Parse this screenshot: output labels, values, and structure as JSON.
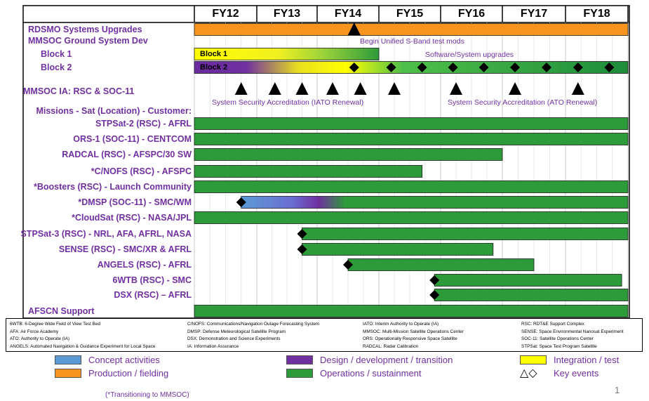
{
  "header": {
    "fiscal_years": [
      "FY12",
      "FY13",
      "FY14",
      "FY15",
      "FY16",
      "FY17",
      "FY18"
    ]
  },
  "rows": [
    {
      "label": "RDSMO Systems Upgrades"
    },
    {
      "label": "MMSOC Ground System Dev"
    },
    {
      "label": "Block 1"
    },
    {
      "label": "Block 2"
    },
    {
      "label": "MMSOC IA: RSC & SOC-11"
    },
    {
      "label": "Missions - Sat (Location) - Customer:"
    },
    {
      "label": "STPSat-2 (RSC) - AFRL"
    },
    {
      "label": "ORS-1 (SOC-11) - CENTCOM"
    },
    {
      "label": "RADCAL (RSC) - AFSPC/30 SW"
    },
    {
      "label": "*C/NOFS (RSC) - AFSPC"
    },
    {
      "label": "*Boosters (RSC) - Launch Community"
    },
    {
      "label": "*DMSP (SOC-11) - SMC/WM"
    },
    {
      "label": "*CloudSat (RSC) - NASA/JPL"
    },
    {
      "label": "STPSat-3 (RSC) - NRL, AFA, AFRL, NASA"
    },
    {
      "label": "SENSE (RSC) - SMC/XR & AFRL"
    },
    {
      "label": "ANGELS (RSC) - AFRL"
    },
    {
      "label": "6WTB (RSC) - SMC"
    },
    {
      "label": "DSX (RSC) – AFRL"
    },
    {
      "label": "AFSCN Support"
    }
  ],
  "bar_labels": {
    "block1": "Block 1",
    "block2": "Block 2"
  },
  "annotations": {
    "sband": "Begin Unified S-Band test mods",
    "software_upgrades": "Software/System upgrades",
    "iato_renewal": "System Security Accreditation (IATO Renewal)",
    "ato_renewal": "System Security Accreditation (ATO Renewal)"
  },
  "glossary": {
    "col1": [
      "6WTB: 6-Degree Wide Field of View Test Bed",
      "AFA: Air Force Academy",
      "ATO: Authority to Operate (IA)",
      "ANGELS: Automated Navigation & Guidance Experiment for Local Space"
    ],
    "col2": [
      "C/NOFS: Communications/Navigation Outage Forecasting System",
      "DMSP: Defense Meteorological Satellite Program",
      "DSX: Demonstration and Science Experiments",
      "IA: Information Assurance"
    ],
    "col3": [
      "IATO: Interim Authority to Operate (IA)",
      "MMSOC: Multi-Mission Satellite Operations Center",
      "ORS: Operationally Responsive Space Satellite",
      "RADCAL: Radar Calibration"
    ],
    "col4": [
      "RSC: RDT&E Support Complex",
      "SENSE: Space Environmental Nanosat Experiment",
      "SOC-11: Satellite Operations Center",
      "STPSat: Space Test Program Satellite"
    ]
  },
  "legend": {
    "concept": "Concept activities",
    "production": "Production / fielding",
    "design": "Design / development / transition",
    "operations": "Operations / sustainment",
    "integration": "Integration / test",
    "key_events_symbols": "△◇",
    "key_events": "Key events"
  },
  "footnote": "(*Transitioning to MMSOC)",
  "page_number": "1",
  "colors": {
    "concept": "#5b9bd5",
    "production": "#f7941d",
    "design": "#7030a0",
    "operations": "#2e9b3a",
    "integration": "#ffff00",
    "label": "#7030a0"
  },
  "chart_data": {
    "type": "gantt",
    "x_axis": {
      "unit": "fiscal year",
      "categories": [
        "FY12",
        "FY13",
        "FY14",
        "FY15",
        "FY16",
        "FY17",
        "FY18"
      ],
      "range": [
        2012.0,
        2019.0
      ]
    },
    "tasks": [
      {
        "row": "RDSMO Systems Upgrades",
        "phase": "production",
        "start": 2012.0,
        "end": 2019.0
      },
      {
        "row": "Block 1",
        "phase": "integration_to_operations",
        "start": 2012.0,
        "end": 2015.0
      },
      {
        "row": "Block 2",
        "phase": "design_integration_operations",
        "start": 2012.0,
        "end": 2019.0
      },
      {
        "row": "STPSat-2 (RSC) - AFRL",
        "phase": "operations",
        "start": 2012.0,
        "end": 2019.0
      },
      {
        "row": "ORS-1 (SOC-11) - CENTCOM",
        "phase": "operations",
        "start": 2012.0,
        "end": 2019.0
      },
      {
        "row": "RADCAL (RSC) - AFSPC/30 SW",
        "phase": "operations",
        "start": 2012.0,
        "end": 2017.0
      },
      {
        "row": "*C/NOFS (RSC) - AFSPC",
        "phase": "operations",
        "start": 2012.0,
        "end": 2015.7
      },
      {
        "row": "*Boosters (RSC) - Launch Community",
        "phase": "operations",
        "start": 2012.0,
        "end": 2019.0
      },
      {
        "row": "*DMSP (SOC-11) - SMC/WM",
        "phase": "concept_design_operations",
        "start": 2012.75,
        "end": 2019.0
      },
      {
        "row": "*CloudSat (RSC) - NASA/JPL",
        "phase": "operations",
        "start": 2012.0,
        "end": 2019.0
      },
      {
        "row": "STPSat-3 (RSC) - NRL, AFA, AFRL, NASA",
        "phase": "operations",
        "start": 2013.75,
        "end": 2019.0
      },
      {
        "row": "SENSE (RSC) - SMC/XR & AFRL",
        "phase": "operations",
        "start": 2013.75,
        "end": 2016.85
      },
      {
        "row": "ANGELS (RSC) - AFRL",
        "phase": "operations",
        "start": 2014.5,
        "end": 2017.5
      },
      {
        "row": "6WTB (RSC) - SMC",
        "phase": "operations",
        "start": 2015.9,
        "end": 2018.9
      },
      {
        "row": "DSX (RSC) – AFRL",
        "phase": "operations",
        "start": 2015.9,
        "end": 2019.0
      },
      {
        "row": "AFSCN Support",
        "phase": "operations",
        "start": 2012.0,
        "end": 2019.0
      }
    ],
    "events": [
      {
        "row": "RDSMO Systems Upgrades",
        "marker": "triangle",
        "x": 2014.6
      },
      {
        "row": "Block 2",
        "marker": "diamond",
        "x": [
          2014.6,
          2015.2,
          2015.7,
          2016.2,
          2016.7,
          2017.2,
          2017.7,
          2018.2,
          2018.7
        ]
      },
      {
        "row": "MMSOC IA: RSC & SOC-11",
        "marker": "triangle",
        "x": [
          2012.75,
          2013.3,
          2013.75,
          2014.25,
          2014.7,
          2015.25,
          2016.25,
          2017.2,
          2018.2
        ]
      },
      {
        "row": "*DMSP (SOC-11) - SMC/WM",
        "marker": "diamond",
        "x": [
          2012.75
        ]
      },
      {
        "row": "STPSat-3 (RSC) - NRL, AFA, AFRL, NASA",
        "marker": "diamond",
        "x": [
          2013.75
        ]
      },
      {
        "row": "SENSE (RSC) - SMC/XR & AFRL",
        "marker": "diamond",
        "x": [
          2013.75
        ]
      },
      {
        "row": "ANGELS (RSC) - AFRL",
        "marker": "diamond",
        "x": [
          2014.5
        ]
      },
      {
        "row": "6WTB (RSC) - SMC",
        "marker": "diamond",
        "x": [
          2015.9
        ]
      },
      {
        "row": "DSX (RSC) – AFRL",
        "marker": "diamond",
        "x": [
          2015.9
        ]
      }
    ]
  }
}
